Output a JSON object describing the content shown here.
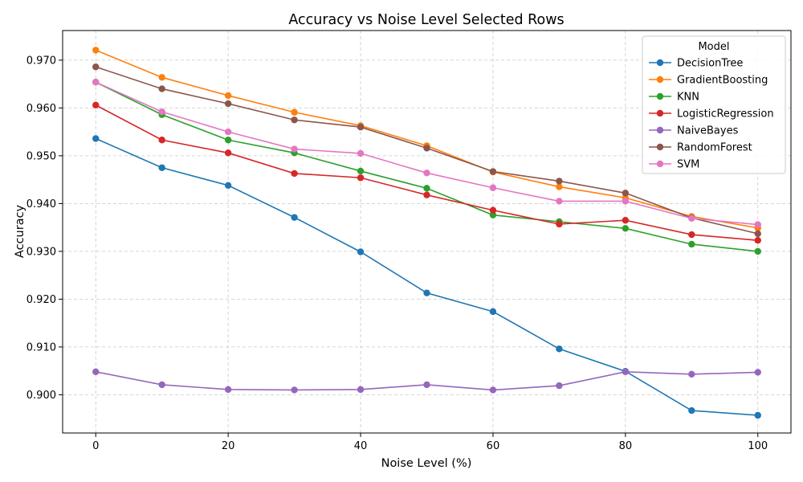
{
  "chart_data": {
    "type": "line",
    "title": "Accuracy vs Noise Level Selected Rows",
    "xlabel": "Noise Level (%)",
    "ylabel": "Accuracy",
    "xlim": [
      -5,
      105
    ],
    "ylim": [
      0.892,
      0.9762
    ],
    "xticks": [
      0,
      20,
      40,
      60,
      80,
      100
    ],
    "yticks": [
      0.9,
      0.91,
      0.92,
      0.93,
      0.94,
      0.95,
      0.96,
      0.97
    ],
    "ytick_labels": [
      "0.900",
      "0.910",
      "0.920",
      "0.930",
      "0.940",
      "0.950",
      "0.960",
      "0.970"
    ],
    "grid": true,
    "legend_title": "Model",
    "legend_position": "top-right",
    "x": [
      0,
      10,
      20,
      30,
      40,
      50,
      60,
      70,
      80,
      90,
      100
    ],
    "series": [
      {
        "name": "DecisionTree",
        "color": "#1f77b4",
        "values": [
          0.9536,
          0.9475,
          0.9438,
          0.9371,
          0.9299,
          0.9213,
          0.9174,
          0.9096,
          0.9049,
          0.8967,
          0.8957
        ]
      },
      {
        "name": "GradientBoosting",
        "color": "#ff7f0e",
        "values": [
          0.9721,
          0.9664,
          0.9626,
          0.9591,
          0.9563,
          0.9521,
          0.9466,
          0.9435,
          0.9412,
          0.9373,
          0.9349
        ]
      },
      {
        "name": "KNN",
        "color": "#2ca02c",
        "values": [
          0.9654,
          0.9586,
          0.9533,
          0.9506,
          0.9468,
          0.9432,
          0.9376,
          0.9362,
          0.9348,
          0.9315,
          0.93
        ]
      },
      {
        "name": "LogisticRegression",
        "color": "#d62728",
        "values": [
          0.9606,
          0.9533,
          0.9506,
          0.9463,
          0.9454,
          0.9418,
          0.9386,
          0.9357,
          0.9365,
          0.9335,
          0.9323
        ]
      },
      {
        "name": "NaiveBayes",
        "color": "#9467bd",
        "values": [
          0.9048,
          0.9021,
          0.9011,
          0.901,
          0.9011,
          0.9021,
          0.901,
          0.9019,
          0.9048,
          0.9043,
          0.9047
        ]
      },
      {
        "name": "RandomForest",
        "color": "#8c564b",
        "values": [
          0.9686,
          0.964,
          0.9609,
          0.9575,
          0.956,
          0.9516,
          0.9467,
          0.9447,
          0.9422,
          0.937,
          0.9337
        ]
      },
      {
        "name": "SVM",
        "color": "#e377c2",
        "values": [
          0.9654,
          0.9592,
          0.955,
          0.9514,
          0.9505,
          0.9464,
          0.9433,
          0.9405,
          0.9405,
          0.9369,
          0.9356
        ]
      }
    ]
  }
}
